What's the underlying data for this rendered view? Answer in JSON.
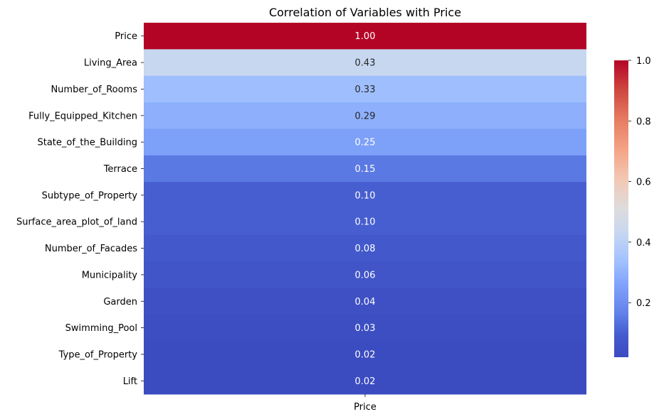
{
  "chart_data": {
    "type": "heatmap",
    "title": "Correlation of Variables with Price",
    "rows": [
      "Price",
      "Living_Area",
      "Number_of_Rooms",
      "Fully_Equipped_Kitchen",
      "State_of_the_Building",
      "Terrace",
      "Subtype_of_Property",
      "Surface_area_plot_of_land",
      "Number_of_Facades",
      "Municipality",
      "Garden",
      "Swimming_Pool",
      "Type_of_Property",
      "Lift"
    ],
    "columns": [
      "Price"
    ],
    "values": [
      1.0,
      0.43,
      0.33,
      0.29,
      0.25,
      0.15,
      0.1,
      0.1,
      0.08,
      0.06,
      0.04,
      0.03,
      0.02,
      0.02
    ],
    "value_labels": [
      "1.00",
      "0.43",
      "0.33",
      "0.29",
      "0.25",
      "0.15",
      "0.10",
      "0.10",
      "0.08",
      "0.06",
      "0.04",
      "0.03",
      "0.02",
      "0.02"
    ],
    "colormap": "coolwarm",
    "colorbar": {
      "min": 0.02,
      "max": 1.0,
      "ticks": [
        0.2,
        0.4,
        0.6,
        0.8,
        1.0
      ],
      "tick_labels": [
        "0.2",
        "0.4",
        "0.6",
        "0.8",
        "1.0"
      ]
    },
    "annotation_colors": {
      "light": "#ffffff",
      "dark": "#262626"
    },
    "grid": false,
    "legend": "colorbar-right"
  }
}
